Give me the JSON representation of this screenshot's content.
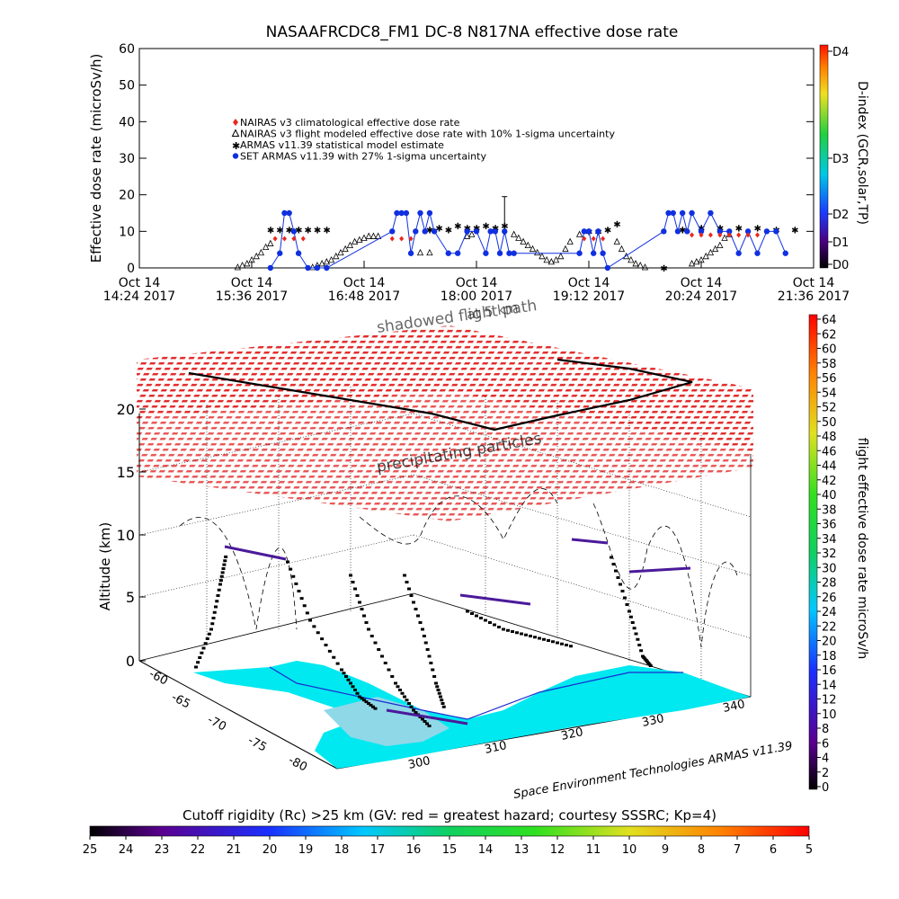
{
  "title": "NASAAFRCDC8_FM1 DC-8   N817NA effective dose rate",
  "top_chart": {
    "type": "scatter",
    "ylabel": "Effective dose rate (microSv/h)",
    "ylim": [
      0,
      60
    ],
    "yticks": [
      "0",
      "10",
      "20",
      "30",
      "40",
      "50",
      "60"
    ],
    "xticks": [
      {
        "date": "Oct 14",
        "time": "14:24 2017"
      },
      {
        "date": "Oct 14",
        "time": "15:36 2017"
      },
      {
        "date": "Oct 14",
        "time": "16:48 2017"
      },
      {
        "date": "Oct 14",
        "time": "18:00 2017"
      },
      {
        "date": "Oct 14",
        "time": "19:12 2017"
      },
      {
        "date": "Oct 14",
        "time": "20:24 2017"
      },
      {
        "date": "Oct 14",
        "time": "21:36 2017"
      }
    ],
    "xlim_hours": [
      14.4,
      21.6
    ],
    "legend": [
      {
        "label": "NAIRAS v3 climatological effective dose rate",
        "marker": "diamond",
        "color": "#e8281e"
      },
      {
        "label": "NAIRAS v3 flight modeled effective dose rate with 10% 1-sigma uncertainty",
        "marker": "triangle",
        "color": "#000000"
      },
      {
        "label": "ARMAS v11.39 statistical model estimate",
        "marker": "star",
        "color": "#40d838"
      },
      {
        "label": "SET ARMAS v11.39 with 27% 1-sigma uncertainty",
        "marker": "circle",
        "color": "#1030e0"
      }
    ],
    "error_bar": {
      "x": 18.3,
      "y": 9,
      "upper": 19.5
    },
    "series": [
      {
        "name": "NAIRAS v3 flight modeled effective dose rate with 10% 1-sigma uncertainty",
        "x": [
          15.45,
          15.5,
          15.55,
          15.6,
          15.65,
          15.7,
          15.75,
          15.8,
          16.25,
          16.3,
          16.35,
          16.4,
          16.45,
          16.5,
          16.55,
          16.6,
          16.65,
          16.7,
          16.75,
          16.8,
          16.85,
          16.9,
          16.95,
          17.4,
          17.5,
          17.9,
          17.95,
          18.4,
          18.45,
          18.5,
          18.55,
          18.6,
          18.65,
          18.7,
          18.75,
          18.8,
          18.85,
          18.9,
          18.95,
          19.0,
          19.1,
          19.5,
          19.55,
          19.6,
          19.65,
          19.7,
          19.75,
          19.8,
          20.3,
          20.35,
          20.4,
          20.45,
          20.5,
          20.55,
          20.6,
          20.65,
          20.7
        ],
        "y": [
          0,
          0.5,
          1,
          2,
          3,
          4,
          5.5,
          6.5,
          0,
          0.5,
          1,
          1.5,
          2,
          3,
          4,
          5,
          6,
          7,
          7.5,
          8,
          8.5,
          8.5,
          8.5,
          4,
          4,
          8.5,
          9,
          9,
          8,
          7,
          6,
          5,
          4,
          3,
          2,
          1.5,
          2,
          3,
          5,
          7,
          9,
          7,
          5,
          3,
          2,
          1,
          0.5,
          0,
          1,
          1.5,
          2,
          3,
          4,
          5,
          6,
          8,
          9
        ]
      },
      {
        "name": "ARMAS v11.39 statistical model estimate",
        "x": [
          15.8,
          15.9,
          16.0,
          16.1,
          16.2,
          16.3,
          16.4,
          17.5,
          17.6,
          17.7,
          17.8,
          17.9,
          18.0,
          18.1,
          18.2,
          18.3,
          19.2,
          19.3,
          19.4,
          19.5,
          20.0,
          20.2,
          20.4,
          20.6,
          20.8,
          21.0,
          21.2,
          21.4
        ],
        "y": [
          10.5,
          10.5,
          10.5,
          10.5,
          10.5,
          10.5,
          10.5,
          10.5,
          11,
          10.5,
          11.5,
          11,
          11,
          11.5,
          11,
          11.5,
          10,
          10,
          10.5,
          12,
          0,
          10.5,
          11,
          11,
          11,
          11,
          10.5,
          10.5
        ]
      },
      {
        "name": "SET ARMAS v11.39 with 27% 1-sigma uncertainty",
        "x": [
          15.8,
          15.9,
          15.95,
          16.0,
          16.05,
          16.1,
          16.2,
          16.3,
          16.4,
          17.1,
          17.15,
          17.2,
          17.25,
          17.3,
          17.35,
          17.4,
          17.45,
          17.5,
          17.55,
          17.7,
          17.8,
          17.9,
          18.0,
          18.1,
          18.15,
          18.2,
          18.25,
          18.3,
          18.35,
          18.4,
          19.1,
          19.15,
          19.2,
          19.25,
          19.3,
          19.35,
          19.4,
          20.0,
          20.05,
          20.1,
          20.15,
          20.2,
          20.25,
          20.3,
          20.4,
          20.5,
          20.6,
          20.7,
          20.8,
          20.9,
          21.0,
          21.1,
          21.2,
          21.3
        ],
        "y": [
          0,
          4,
          15,
          15,
          10,
          4,
          0,
          0,
          0,
          10,
          15,
          15,
          15,
          4,
          10,
          15,
          10,
          15,
          10,
          4,
          4,
          10,
          10,
          4,
          10,
          10,
          4,
          10,
          4,
          4,
          4,
          10,
          10,
          4,
          10,
          4,
          0,
          10,
          15,
          15,
          10,
          15,
          10,
          15,
          10,
          15,
          10,
          10,
          4,
          10,
          4,
          10,
          10,
          4
        ]
      },
      {
        "name": "NAIRAS v3 climatological effective dose rate",
        "x": [
          15.85,
          15.95,
          16.05,
          16.15,
          17.1,
          17.2,
          17.3,
          19.15,
          19.25,
          19.35,
          20.3,
          20.4,
          20.5,
          20.6,
          20.7,
          20.8,
          20.9,
          21.0
        ],
        "y": [
          8,
          8,
          8,
          8,
          8,
          8,
          8,
          8,
          8,
          8,
          9,
          9,
          9,
          9,
          9,
          9,
          9,
          9
        ]
      }
    ]
  },
  "colorbar_dindex": {
    "label": "D-index (GCR,solar,TP)",
    "ticks": [
      "D4",
      "D3",
      "D2",
      "D1",
      "D0"
    ]
  },
  "main_panel": {
    "zlabel": "Altitude (km)",
    "zticks": [
      "0",
      "5",
      "10",
      "15",
      "20"
    ],
    "lat_ticks": [
      "-60",
      "-65",
      "-70",
      "-75",
      "-80"
    ],
    "lon_ticks": [
      "300",
      "310",
      "320",
      "330",
      "340"
    ],
    "annotation_path": "shadowed flight path",
    "annotation_path_2": "at 5 km",
    "annotation_precip": "precipitating particles",
    "credit": "Space Environment Technologies ARMAS v11.39",
    "flight_dose_colorbar": {
      "label": "flight effective dose rate microSv/h",
      "ticks": [
        "64",
        "62",
        "60",
        "58",
        "56",
        "54",
        "52",
        "50",
        "48",
        "46",
        "44",
        "42",
        "40",
        "38",
        "36",
        "34",
        "32",
        "30",
        "28",
        "26",
        "24",
        "22",
        "20",
        "18",
        "16",
        "14",
        "12",
        "10",
        "8",
        "6",
        "4",
        "2",
        "0"
      ]
    }
  },
  "cutoff_colorbar": {
    "label": "Cutoff rigidity (Rc) >25 km (GV: red = greatest hazard; courtesy SSSRC; Kp=4)",
    "ticks": [
      "25",
      "24",
      "23",
      "22",
      "21",
      "20",
      "19",
      "18",
      "17",
      "16",
      "15",
      "14",
      "13",
      "12",
      "11",
      "10",
      "9",
      "8",
      "7",
      "6",
      "5"
    ]
  }
}
